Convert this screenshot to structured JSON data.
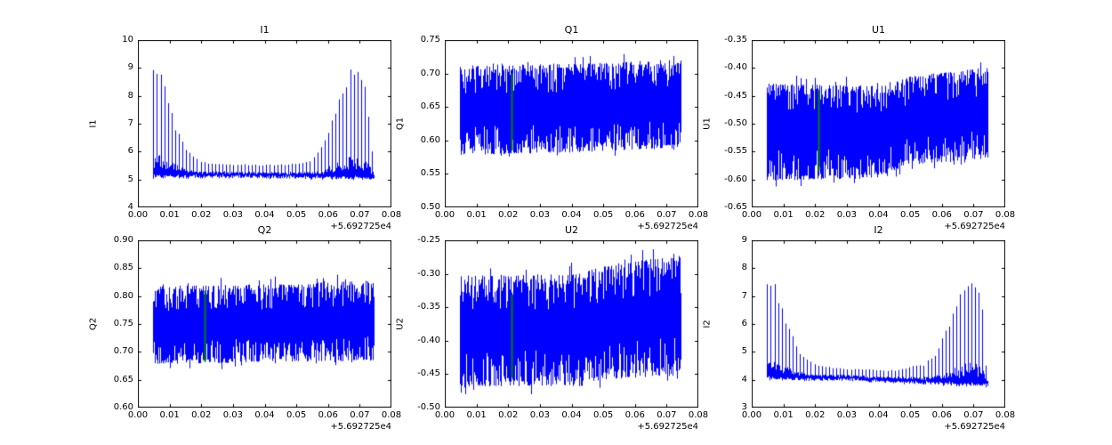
{
  "figure": {
    "background": "#ffffff",
    "line_color": "#0000ff",
    "marker_color": "#008000",
    "axis_color": "#000000"
  },
  "x_axis": {
    "xlim": [
      0,
      0.08
    ],
    "tick_values": [
      0,
      0.01,
      0.02,
      0.03,
      0.04,
      0.05,
      0.06,
      0.07,
      0.08
    ],
    "tick_labels": [
      "0.00",
      "0.01",
      "0.02",
      "0.03",
      "0.04",
      "0.05",
      "0.06",
      "0.07",
      "0.08"
    ],
    "offset_label": "+5.692725e4"
  },
  "chart_data": [
    {
      "id": "I1",
      "type": "line",
      "style": "spiky",
      "title": "I1",
      "ylabel": "I1",
      "ylim": [
        4,
        10
      ],
      "ytick_values": [
        4,
        5,
        6,
        7,
        8,
        9,
        10
      ],
      "ytick_labels": [
        "4",
        "5",
        "6",
        "7",
        "8",
        "9",
        "10"
      ],
      "x_range": [
        0.005,
        0.0745
      ],
      "baseline": [
        [
          0.005,
          5.2
        ],
        [
          0.03,
          5.2
        ],
        [
          0.074,
          5.15
        ]
      ],
      "spike_envelope": [
        [
          0.005,
          9.1
        ],
        [
          0.007,
          9.0
        ],
        [
          0.009,
          8.2
        ],
        [
          0.012,
          7.0
        ],
        [
          0.015,
          6.2
        ],
        [
          0.018,
          5.8
        ],
        [
          0.022,
          5.6
        ],
        [
          0.03,
          5.55
        ],
        [
          0.045,
          5.55
        ],
        [
          0.055,
          5.7
        ],
        [
          0.058,
          6.2
        ],
        [
          0.061,
          7.0
        ],
        [
          0.064,
          8.2
        ],
        [
          0.067,
          9.0
        ],
        [
          0.07,
          9.1
        ],
        [
          0.072,
          8.8
        ],
        [
          0.074,
          6.0
        ]
      ],
      "spike_period": 0.00115,
      "marker_line": null
    },
    {
      "id": "Q1",
      "type": "line",
      "style": "band",
      "title": "Q1",
      "ylabel": "Q1",
      "ylim": [
        0.5,
        0.75
      ],
      "ytick_values": [
        0.5,
        0.55,
        0.6,
        0.65,
        0.7,
        0.75
      ],
      "ytick_labels": [
        "0.50",
        "0.55",
        "0.60",
        "0.65",
        "0.70",
        "0.75"
      ],
      "x_range": [
        0.005,
        0.0745
      ],
      "band_lower": [
        [
          0.005,
          0.578
        ],
        [
          0.04,
          0.582
        ],
        [
          0.075,
          0.588
        ]
      ],
      "band_upper": [
        [
          0.005,
          0.712
        ],
        [
          0.045,
          0.715
        ],
        [
          0.075,
          0.722
        ]
      ],
      "marker_line": {
        "x": 0.0212,
        "y0": 0.585,
        "y1": 0.7
      }
    },
    {
      "id": "U1",
      "type": "line",
      "style": "band",
      "title": "U1",
      "ylabel": "U1",
      "ylim": [
        -0.65,
        -0.35
      ],
      "ytick_values": [
        -0.65,
        -0.6,
        -0.55,
        -0.5,
        -0.45,
        -0.4,
        -0.35
      ],
      "ytick_labels": [
        "-0.65",
        "-0.60",
        "-0.55",
        "-0.50",
        "-0.45",
        "-0.40",
        "-0.35"
      ],
      "x_range": [
        0.005,
        0.0745
      ],
      "band_lower": [
        [
          0.005,
          -0.602
        ],
        [
          0.042,
          -0.598
        ],
        [
          0.048,
          -0.575
        ],
        [
          0.075,
          -0.562
        ]
      ],
      "band_upper": [
        [
          0.005,
          -0.428
        ],
        [
          0.042,
          -0.432
        ],
        [
          0.05,
          -0.415
        ],
        [
          0.075,
          -0.398
        ]
      ],
      "marker_line": {
        "x": 0.0212,
        "y0": -0.585,
        "y1": -0.44
      }
    },
    {
      "id": "Q2",
      "type": "line",
      "style": "band",
      "title": "Q2",
      "ylabel": "Q2",
      "ylim": [
        0.6,
        0.9
      ],
      "ytick_values": [
        0.6,
        0.65,
        0.7,
        0.75,
        0.8,
        0.85,
        0.9
      ],
      "ytick_labels": [
        "0.60",
        "0.65",
        "0.70",
        "0.75",
        "0.80",
        "0.85",
        "0.90"
      ],
      "x_range": [
        0.005,
        0.0745
      ],
      "band_lower": [
        [
          0.005,
          0.678
        ],
        [
          0.075,
          0.684
        ]
      ],
      "band_upper": [
        [
          0.005,
          0.818
        ],
        [
          0.05,
          0.822
        ],
        [
          0.075,
          0.83
        ]
      ],
      "marker_line": {
        "x": 0.0212,
        "y0": 0.682,
        "y1": 0.81
      }
    },
    {
      "id": "U2",
      "type": "line",
      "style": "band",
      "title": "U2",
      "ylabel": "U2",
      "ylim": [
        -0.5,
        -0.25
      ],
      "ytick_values": [
        -0.5,
        -0.45,
        -0.4,
        -0.35,
        -0.3,
        -0.25
      ],
      "ytick_labels": [
        "-0.50",
        "-0.45",
        "-0.40",
        "-0.35",
        "-0.30",
        "-0.25"
      ],
      "x_range": [
        0.005,
        0.0745
      ],
      "band_lower": [
        [
          0.005,
          -0.468
        ],
        [
          0.044,
          -0.468
        ],
        [
          0.05,
          -0.458
        ],
        [
          0.075,
          -0.452
        ]
      ],
      "band_upper": [
        [
          0.005,
          -0.302
        ],
        [
          0.04,
          -0.3
        ],
        [
          0.05,
          -0.287
        ],
        [
          0.075,
          -0.272
        ]
      ],
      "marker_line": {
        "x": 0.0212,
        "y0": -0.455,
        "y1": -0.332
      }
    },
    {
      "id": "I2",
      "type": "line",
      "style": "spiky",
      "title": "I2",
      "ylabel": "I2",
      "ylim": [
        3,
        9
      ],
      "ytick_values": [
        3,
        4,
        5,
        6,
        7,
        8,
        9
      ],
      "ytick_labels": [
        "3",
        "4",
        "5",
        "6",
        "7",
        "8",
        "9"
      ],
      "x_range": [
        0.005,
        0.0745
      ],
      "baseline": [
        [
          0.005,
          4.15
        ],
        [
          0.03,
          4.1
        ],
        [
          0.074,
          3.9
        ]
      ],
      "spike_envelope": [
        [
          0.005,
          8.0
        ],
        [
          0.007,
          7.8
        ],
        [
          0.009,
          7.0
        ],
        [
          0.012,
          5.9
        ],
        [
          0.015,
          5.1
        ],
        [
          0.018,
          4.7
        ],
        [
          0.022,
          4.5
        ],
        [
          0.03,
          4.4
        ],
        [
          0.045,
          4.35
        ],
        [
          0.055,
          4.6
        ],
        [
          0.058,
          5.0
        ],
        [
          0.061,
          5.8
        ],
        [
          0.064,
          6.6
        ],
        [
          0.067,
          7.5
        ],
        [
          0.069,
          7.9
        ],
        [
          0.071,
          7.8
        ],
        [
          0.073,
          6.5
        ],
        [
          0.074,
          4.5
        ]
      ],
      "spike_period": 0.00115,
      "marker_line": null
    }
  ]
}
